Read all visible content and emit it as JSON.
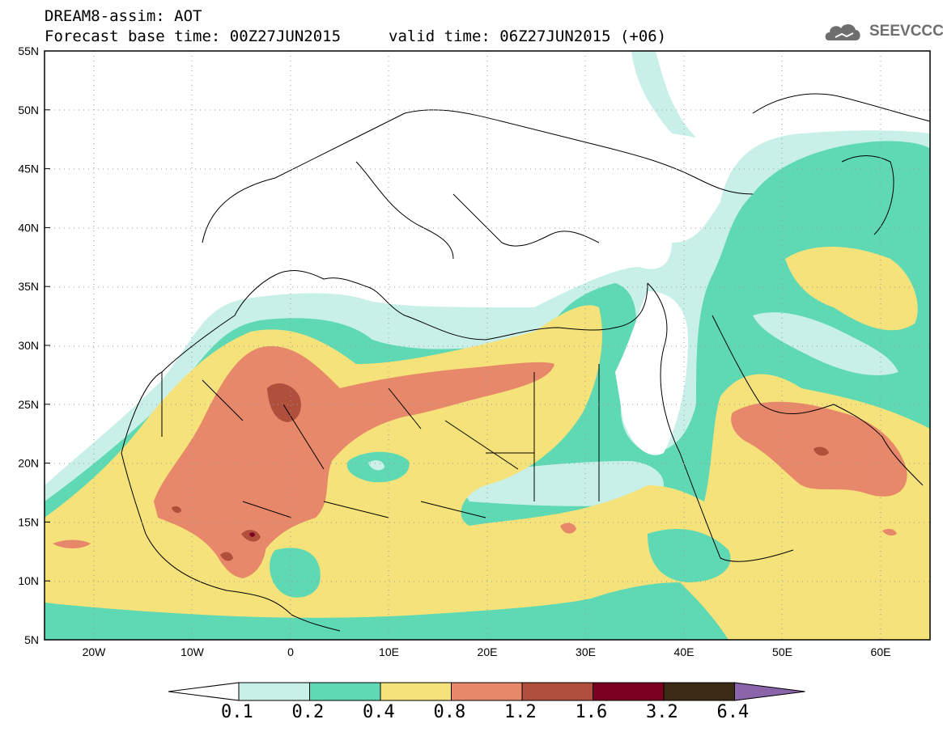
{
  "header": {
    "model_title": "DREAM8-assim: AOT",
    "base_time": "Forecast base time: 00Z27JUN2015",
    "valid_time": "valid time: 06Z27JUN2015 (+06)",
    "logo_text": "SEEVCCC"
  },
  "axes": {
    "lat_labels": [
      "55N",
      "50N",
      "45N",
      "40N",
      "35N",
      "30N",
      "25N",
      "20N",
      "15N",
      "10N",
      "5N"
    ],
    "lon_labels": [
      "20W",
      "10W",
      "0",
      "10E",
      "20E",
      "30E",
      "40E",
      "50E",
      "60E"
    ]
  },
  "legend": {
    "thresholds": [
      "0.1",
      "0.2",
      "0.4",
      "0.8",
      "1.2",
      "1.6",
      "3.2",
      "6.4"
    ],
    "colors": [
      "#ffffff",
      "#c8f0e8",
      "#5ed9b4",
      "#f5e27a",
      "#e8886a",
      "#b0503c",
      "#7a0020",
      "#3d2a14",
      "#8c64aa"
    ]
  },
  "map_data": {
    "variable": "AOT",
    "lon_range": [
      -25,
      65
    ],
    "lat_range": [
      5,
      55
    ],
    "features": [
      {
        "region": "central Sahara (Algeria/Mali)",
        "max_level": "1.6"
      },
      {
        "region": "Mali / Niger Sahel",
        "max_level": "1.6"
      },
      {
        "region": "Arabian Peninsula (Oman/UAE)",
        "max_level": "1.6"
      },
      {
        "region": "Libya / Egypt belt",
        "max_level": "1.2"
      }
    ]
  }
}
